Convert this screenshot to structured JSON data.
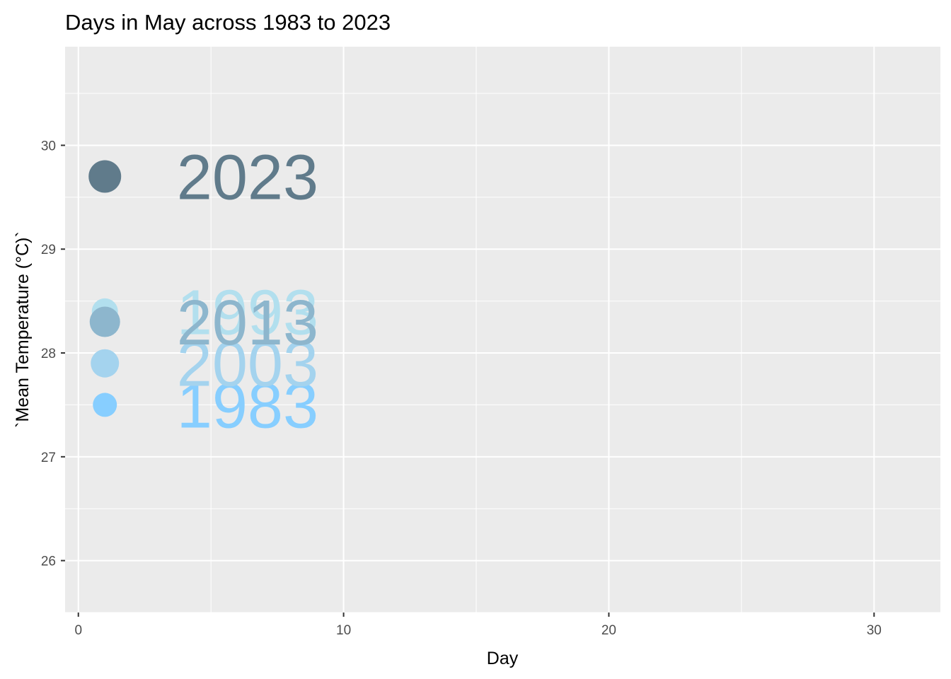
{
  "chart_data": {
    "type": "scatter",
    "title": "Days in May across 1983 to 2023",
    "xlabel": "Day",
    "ylabel": "`Mean Temperature (°C)`",
    "xlim": [
      -0.5,
      32.5
    ],
    "ylim": [
      25.5,
      30.95
    ],
    "x_ticks": [
      0,
      10,
      20,
      30
    ],
    "x_minor_ticks": [
      5,
      15,
      25
    ],
    "y_ticks": [
      26,
      27,
      28,
      29,
      30
    ],
    "y_minor_ticks": [
      25.5,
      26.5,
      27.5,
      28.5,
      29.5,
      30.5
    ],
    "grid": true,
    "legend": "none",
    "series": [
      {
        "name": "1983",
        "x": [
          1
        ],
        "y": [
          27.5
        ],
        "color": "#87ceff"
      },
      {
        "name": "1993",
        "x": [
          1
        ],
        "y": [
          28.4
        ],
        "color": "#b2dfee"
      },
      {
        "name": "2003",
        "x": [
          1
        ],
        "y": [
          27.9
        ],
        "color": "#a4d3ee"
      },
      {
        "name": "2013",
        "x": [
          1
        ],
        "y": [
          28.3
        ],
        "color": "#8db6cd"
      },
      {
        "name": "2023",
        "x": [
          1
        ],
        "y": [
          29.7
        ],
        "color": "#607b8b"
      }
    ]
  }
}
